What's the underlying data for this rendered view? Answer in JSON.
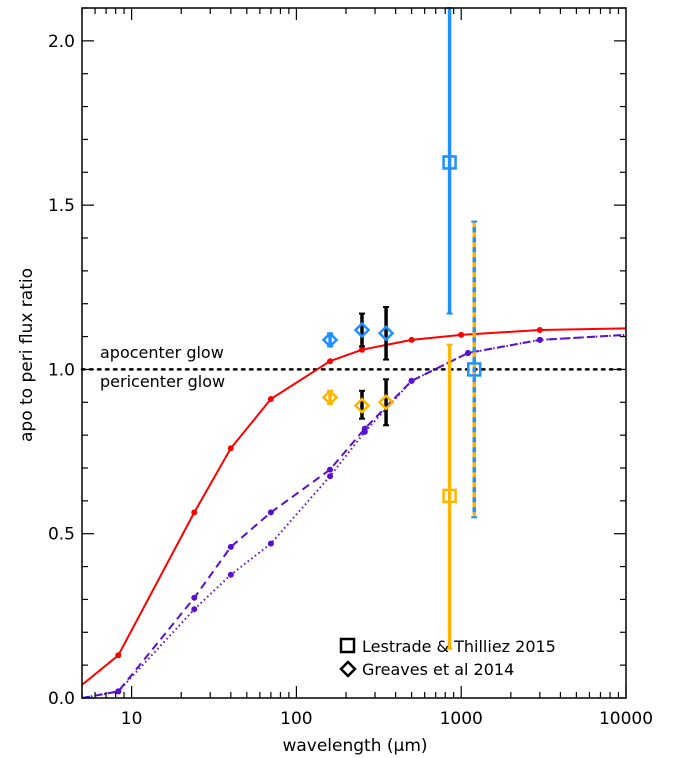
{
  "chart_data": {
    "type": "scatter",
    "title": "",
    "xlabel_prefix": "wavelength (",
    "xlabel_unit": "μm",
    "xlabel_suffix": ")",
    "ylabel": "apo to peri flux ratio",
    "xscale": "log",
    "xlim": [
      5,
      10000
    ],
    "ylim": [
      0.0,
      2.1
    ],
    "x_ticks": [
      10,
      100,
      1000,
      10000
    ],
    "x_tick_labels": [
      "10",
      "100",
      "1000",
      "10000"
    ],
    "y_ticks": [
      0.0,
      0.5,
      1.0,
      1.5,
      2.0
    ],
    "y_tick_labels": [
      "0.0",
      "0.5",
      "1.0",
      "1.5",
      "2.0"
    ],
    "reference_line": {
      "y": 1.0,
      "style": "dotted"
    },
    "annotations": [
      {
        "id": "apocenter",
        "text": "apocenter glow"
      },
      {
        "id": "pericenter",
        "text": "pericenter glow"
      }
    ],
    "lines": [
      {
        "id": "red-solid",
        "color": "#ff0000",
        "dash": "solid",
        "x": [
          5,
          8.3,
          24,
          40,
          70,
          160,
          250,
          500,
          1000,
          3000,
          10000
        ],
        "y": [
          0.04,
          0.13,
          0.565,
          0.76,
          0.91,
          1.025,
          1.06,
          1.09,
          1.105,
          1.12,
          1.125
        ]
      },
      {
        "id": "purple-dashed",
        "color": "#5a0fd0",
        "dash": "dashed",
        "x": [
          5,
          8.3,
          24,
          40,
          70,
          160,
          260,
          500,
          1100,
          3000,
          10000
        ],
        "y": [
          0.0,
          0.02,
          0.305,
          0.46,
          0.565,
          0.695,
          0.82,
          0.965,
          1.05,
          1.09,
          1.105
        ]
      },
      {
        "id": "purple-dotted",
        "color": "#5a0fd0",
        "dash": "dotted",
        "x": [
          5,
          8.3,
          24,
          40,
          70,
          160,
          260,
          500,
          1100,
          3000,
          10000
        ],
        "y": [
          0.0,
          0.02,
          0.27,
          0.375,
          0.47,
          0.675,
          0.81,
          0.965,
          1.05,
          1.09,
          1.105
        ]
      }
    ],
    "points": [
      {
        "id": "greaves-blue-160",
        "marker": "diamond",
        "color": "#1e90ff",
        "x": 160,
        "y": 1.09,
        "yerr_lo": 1.07,
        "yerr_hi": 1.11,
        "errcolor": "#1e90ff"
      },
      {
        "id": "greaves-blue-250",
        "marker": "diamond",
        "color": "#1e90ff",
        "x": 250,
        "y": 1.12,
        "yerr_lo": 1.07,
        "yerr_hi": 1.17,
        "errcolor": "#000000"
      },
      {
        "id": "greaves-blue-350",
        "marker": "diamond",
        "color": "#1e90ff",
        "x": 350,
        "y": 1.11,
        "yerr_lo": 1.03,
        "yerr_hi": 1.19,
        "errcolor": "#000000"
      },
      {
        "id": "greaves-orange-160",
        "marker": "diamond",
        "color": "#ffb400",
        "x": 160,
        "y": 0.915,
        "yerr_lo": 0.895,
        "yerr_hi": 0.935,
        "errcolor": "#ffb400"
      },
      {
        "id": "greaves-orange-250",
        "marker": "diamond",
        "color": "#ffb400",
        "x": 250,
        "y": 0.89,
        "yerr_lo": 0.85,
        "yerr_hi": 0.935,
        "errcolor": "#000000"
      },
      {
        "id": "greaves-orange-350",
        "marker": "diamond",
        "color": "#ffb400",
        "x": 350,
        "y": 0.9,
        "yerr_lo": 0.83,
        "yerr_hi": 0.97,
        "errcolor": "#000000"
      },
      {
        "id": "lestrade-blue-850",
        "marker": "square",
        "color": "#1e90ff",
        "x": 850,
        "y": 1.63,
        "yerr_lo": 1.17,
        "yerr_hi": 2.1,
        "errcolor": "#1e90ff"
      },
      {
        "id": "lestrade-orange-850",
        "marker": "square",
        "color": "#ffb400",
        "x": 850,
        "y": 0.615,
        "yerr_lo": 0.15,
        "yerr_hi": 1.075,
        "errcolor": "#ffb400"
      },
      {
        "id": "lestrade-both-1200",
        "marker": "square",
        "color": "#1e90ff",
        "x": 1200,
        "y": 1.0,
        "yerr_lo": 0.55,
        "yerr_hi": 1.45,
        "errcolor": "#1e90ff",
        "errcolor2": "#ffb400"
      }
    ],
    "legend": {
      "position": "bottom-right",
      "entries": [
        {
          "marker": "square",
          "label": "Lestrade & Thilliez 2015"
        },
        {
          "marker": "diamond",
          "label": "Greaves et al 2014"
        }
      ]
    }
  }
}
